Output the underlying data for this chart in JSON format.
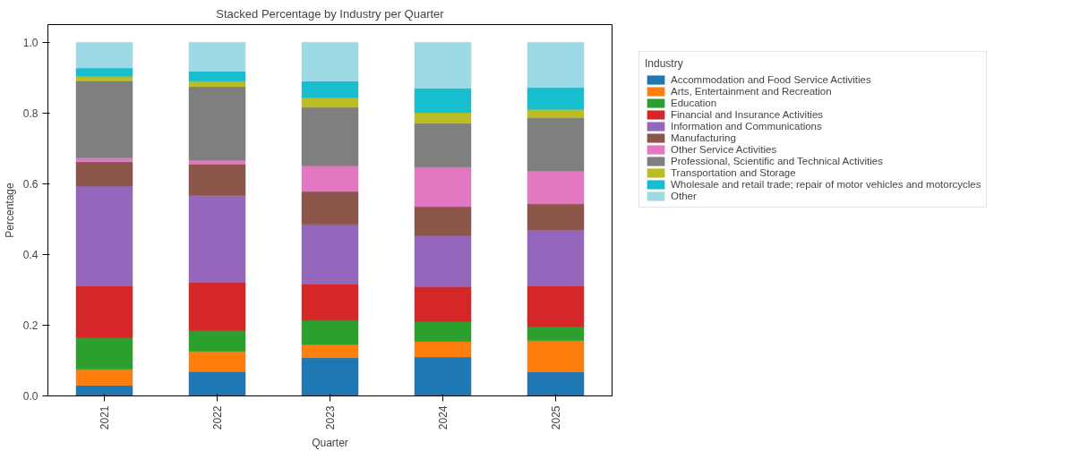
{
  "chart_data": {
    "type": "bar",
    "stacked": true,
    "title": "Stacked Percentage by Industry per Quarter",
    "xlabel": "Quarter",
    "ylabel": "Percentage",
    "legend_title": "Industry",
    "legend": "right",
    "grid": false,
    "categories": [
      "2021",
      "2022",
      "2023",
      "2024",
      "2025"
    ],
    "ylim": [
      0,
      1.05
    ],
    "yticks": [
      {
        "value": 0,
        "label": "0.0"
      },
      {
        "value": 0.2,
        "label": "0.2"
      },
      {
        "value": 0.4,
        "label": "0.4"
      },
      {
        "value": 0.6,
        "label": "0.6"
      },
      {
        "value": 0.8,
        "label": "0.8"
      },
      {
        "value": 1.0,
        "label": "1.0"
      }
    ],
    "series": [
      {
        "name": "Accommodation and Food Service Activities",
        "color": "#1f77b4",
        "values": [
          0.03,
          0.069,
          0.108,
          0.11,
          0.068
        ]
      },
      {
        "name": "Arts, Entertainment and Recreation",
        "color": "#ff7f0e",
        "values": [
          0.045,
          0.057,
          0.037,
          0.044,
          0.088
        ]
      },
      {
        "name": "Education",
        "color": "#2ca02c",
        "values": [
          0.089,
          0.058,
          0.069,
          0.056,
          0.039
        ]
      },
      {
        "name": "Financial and Insurance Activities",
        "color": "#d62728",
        "values": [
          0.148,
          0.137,
          0.103,
          0.099,
          0.117
        ]
      },
      {
        "name": "Information and Communications",
        "color": "#9467bd",
        "values": [
          0.281,
          0.246,
          0.168,
          0.144,
          0.157
        ]
      },
      {
        "name": "Manufacturing",
        "color": "#8c564b",
        "values": [
          0.069,
          0.088,
          0.093,
          0.082,
          0.074
        ]
      },
      {
        "name": "Other Service Activities",
        "color": "#e377c2",
        "values": [
          0.011,
          0.012,
          0.073,
          0.112,
          0.093
        ]
      },
      {
        "name": "Professional, Scientific and Technical Activities",
        "color": "#7f7f7f",
        "values": [
          0.218,
          0.208,
          0.165,
          0.124,
          0.151
        ]
      },
      {
        "name": "Transportation and Storage",
        "color": "#bcbd22",
        "values": [
          0.012,
          0.015,
          0.028,
          0.03,
          0.023
        ]
      },
      {
        "name": "Wholesale and retail trade; repair of motor vehicles and motorcycles",
        "color": "#17becf",
        "values": [
          0.024,
          0.028,
          0.046,
          0.069,
          0.062
        ]
      },
      {
        "name": "Other",
        "color": "#9edae5",
        "values": [
          0.073,
          0.082,
          0.11,
          0.13,
          0.128
        ]
      }
    ]
  }
}
